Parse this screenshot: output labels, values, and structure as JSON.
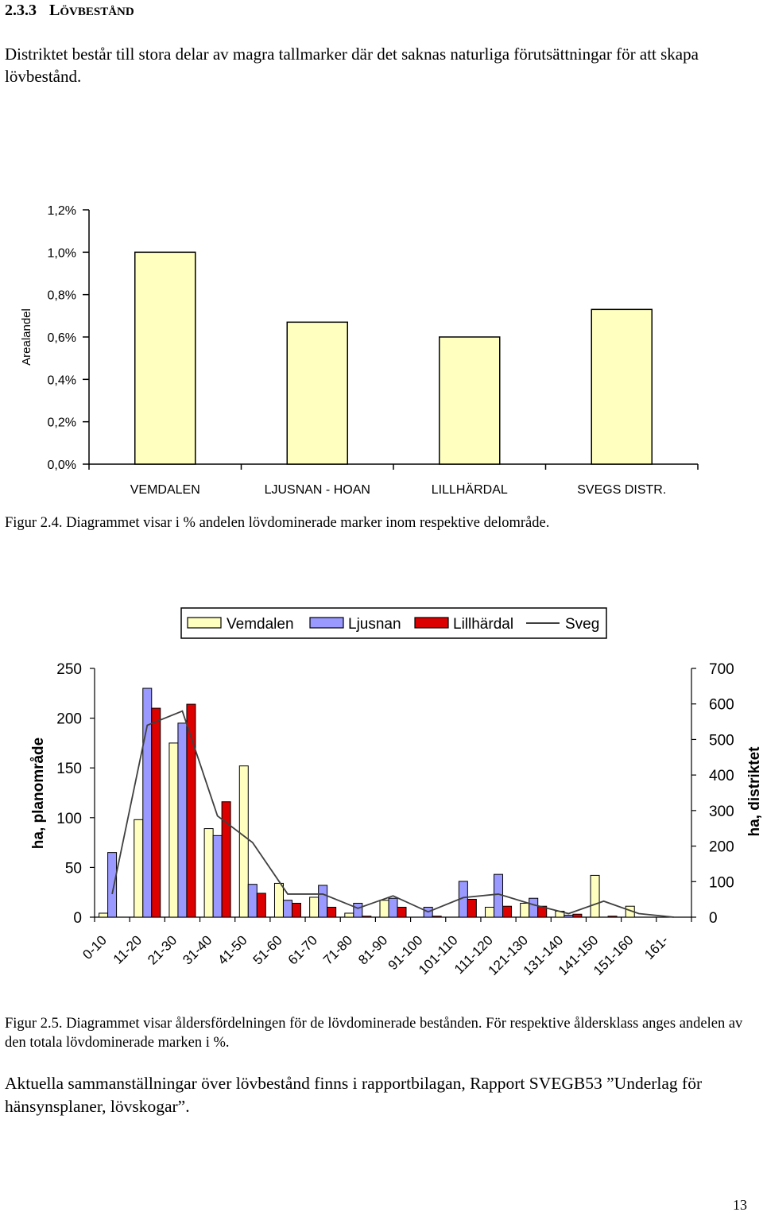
{
  "section": {
    "number": "2.3.3",
    "title_first": "L",
    "title_rest": "ÖVBESTÅND"
  },
  "paragraph1": "Distriktet består till stora delar av magra tallmarker där det saknas naturliga förutsättningar för att skapa lövbestånd.",
  "figure1": {
    "caption": "Figur 2.4. Diagrammet visar i % andelen lövdominerade marker inom respektive delområde."
  },
  "figure2": {
    "caption": "Figur 2.5. Diagrammet visar åldersfördelningen för de lövdominerade bestånden. För respektive åldersklass anges andelen av den totala lövdominerade marken i %."
  },
  "paragraph2": "Aktuella sammanställningar över lövbestånd finns i rapportbilagan, Rapport SVEGB53 ”Underlag för hänsynsplaner, lövskogar”.",
  "page_number": "13",
  "colors": {
    "light_yellow": "#FFFFC0",
    "blue": "#9999FF",
    "red": "#DD0000",
    "line": "#404040"
  },
  "chart_data": [
    {
      "type": "bar",
      "ylabel": "Arealandel",
      "categories": [
        "VEMDALEN",
        "LJUSNAN - HOAN",
        "LILLHÄRDAL",
        "SVEGS DISTR."
      ],
      "values": [
        1.0,
        0.67,
        0.6,
        0.73
      ],
      "ylim": [
        0,
        1.2
      ],
      "yticks": [
        "0,0%",
        "0,2%",
        "0,4%",
        "0,6%",
        "0,8%",
        "1,0%",
        "1,2%"
      ],
      "grid": false
    },
    {
      "type": "bar",
      "ylabel": "ha, planområde",
      "y2label": "ha, distriktet",
      "ylim": [
        0,
        250
      ],
      "y2lim": [
        0,
        700
      ],
      "yticks": [
        "0",
        "50",
        "100",
        "150",
        "200",
        "250"
      ],
      "y2ticks": [
        "0",
        "100",
        "200",
        "300",
        "400",
        "500",
        "600",
        "700"
      ],
      "legend_position": "top",
      "categories": [
        "0-10",
        "11-20",
        "21-30",
        "31-40",
        "41-50",
        "51-60",
        "61-70",
        "71-80",
        "81-90",
        "91-100",
        "101-110",
        "111-120",
        "121-130",
        "131-140",
        "141-150",
        "151-160",
        "161-"
      ],
      "series": [
        {
          "name": "Vemdalen",
          "values": [
            4,
            98,
            175,
            89,
            152,
            34,
            20,
            4,
            17,
            0,
            0,
            10,
            14,
            6,
            42,
            11,
            0
          ]
        },
        {
          "name": "Ljusnan",
          "values": [
            65,
            230,
            195,
            82,
            33,
            17,
            32,
            14,
            19,
            10,
            36,
            43,
            19,
            2,
            0,
            0,
            0
          ]
        },
        {
          "name": "Lillhärdal",
          "values": [
            0,
            210,
            214,
            116,
            24,
            14,
            10,
            1,
            10,
            1,
            18,
            11,
            11,
            3,
            1,
            0,
            0
          ]
        },
        {
          "name": "Sveg",
          "type": "line",
          "axis": "right",
          "values": [
            65,
            540,
            580,
            285,
            210,
            65,
            65,
            25,
            60,
            15,
            55,
            65,
            35,
            10,
            45,
            10,
            0
          ]
        }
      ]
    }
  ]
}
